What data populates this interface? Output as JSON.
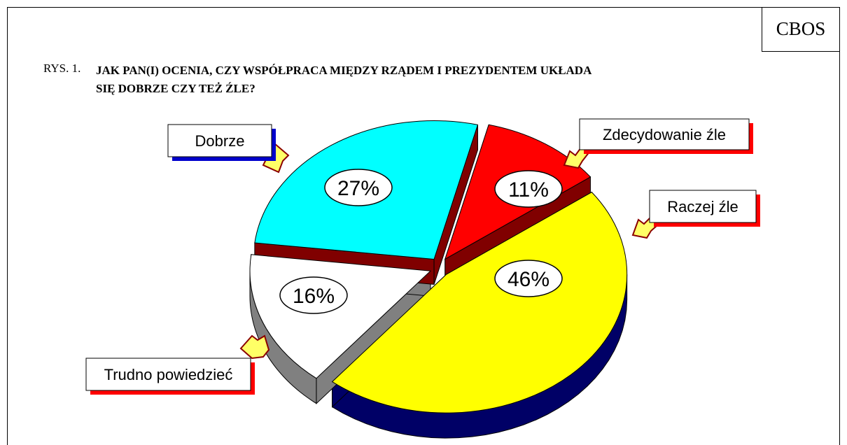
{
  "chart_data": {
    "type": "pie",
    "source": "CBOS",
    "figure_label": "RYS. 1.",
    "title": "JAK PAN(I) OCENIA, CZY WSPÓŁPRACA MIĘDZY RZĄDEM I PREZYDENTEM UKŁADA SIĘ DOBRZE CZY TEŻ ŹLE?",
    "categories": [
      "Zdecydowanie źle",
      "Raczej źle",
      "Trudno powiedzieć",
      "Dobrze"
    ],
    "values": [
      11,
      46,
      16,
      27
    ],
    "value_labels": [
      "11%",
      "46%",
      "16%",
      "27%"
    ],
    "colors": [
      "#ff0000",
      "#ffff00",
      "#ffffff",
      "#00ffff"
    ]
  }
}
